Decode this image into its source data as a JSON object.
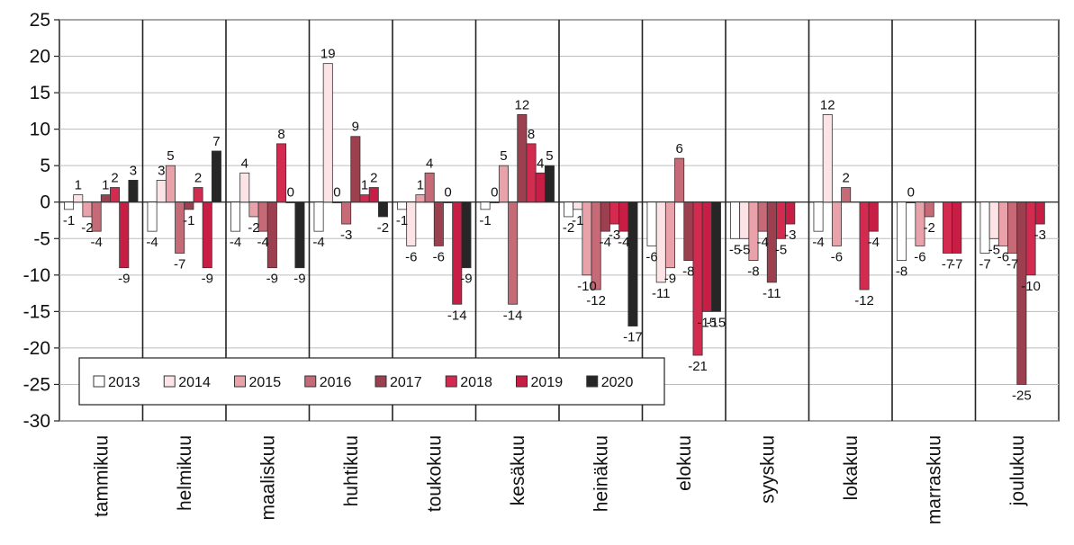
{
  "chart_data": {
    "type": "bar",
    "title": "",
    "xlabel": "",
    "ylabel": "",
    "ylim": [
      -30,
      25
    ],
    "yticks": [
      25,
      20,
      15,
      10,
      5,
      0,
      -5,
      -10,
      -15,
      -20,
      -25,
      -30
    ],
    "grid": true,
    "legend_position": "bottom-left",
    "categories": [
      "tammikuu",
      "helmikuu",
      "maaliskuu",
      "huhtikuu",
      "toukokuu",
      "kesäkuu",
      "heinäkuu",
      "elokuu",
      "syyskuu",
      "lokakuu",
      "marraskuu",
      "joulukuu"
    ],
    "series": [
      {
        "name": "2013",
        "color": "#ffffff",
        "values": [
          -1,
          -4,
          -4,
          -4,
          -1,
          -1,
          -2,
          -6,
          -5,
          -4,
          -8,
          -7
        ]
      },
      {
        "name": "2014",
        "color": "#fbe3e6",
        "values": [
          1,
          3,
          4,
          19,
          -6,
          0,
          -1,
          -11,
          -5,
          12,
          0,
          -5
        ]
      },
      {
        "name": "2015",
        "color": "#eaa2aa",
        "values": [
          -2,
          5,
          -2,
          0,
          1,
          5,
          -10,
          -9,
          -8,
          -6,
          -6,
          -6
        ]
      },
      {
        "name": "2016",
        "color": "#c56a76",
        "values": [
          -4,
          -7,
          -4,
          -3,
          4,
          -14,
          -12,
          6,
          -4,
          2,
          -2,
          -7
        ]
      },
      {
        "name": "2017",
        "color": "#9c3f4e",
        "values": [
          1,
          -1,
          -9,
          9,
          -6,
          12,
          -4,
          -8,
          -11,
          null,
          null,
          -25
        ]
      },
      {
        "name": "2018",
        "color": "#d32a50",
        "values": [
          2,
          2,
          8,
          1,
          0,
          8,
          -3,
          -21,
          -5,
          -12,
          -7,
          -10
        ]
      },
      {
        "name": "2019",
        "color": "#c81e45",
        "values": [
          -9,
          -9,
          0,
          2,
          -14,
          4,
          -4,
          -15,
          -3,
          -4,
          -7,
          -3
        ]
      },
      {
        "name": "2020",
        "color": "#262626",
        "values": [
          3,
          7,
          -9,
          -2,
          -9,
          5,
          -17,
          -15,
          null,
          null,
          null,
          null
        ]
      }
    ]
  }
}
